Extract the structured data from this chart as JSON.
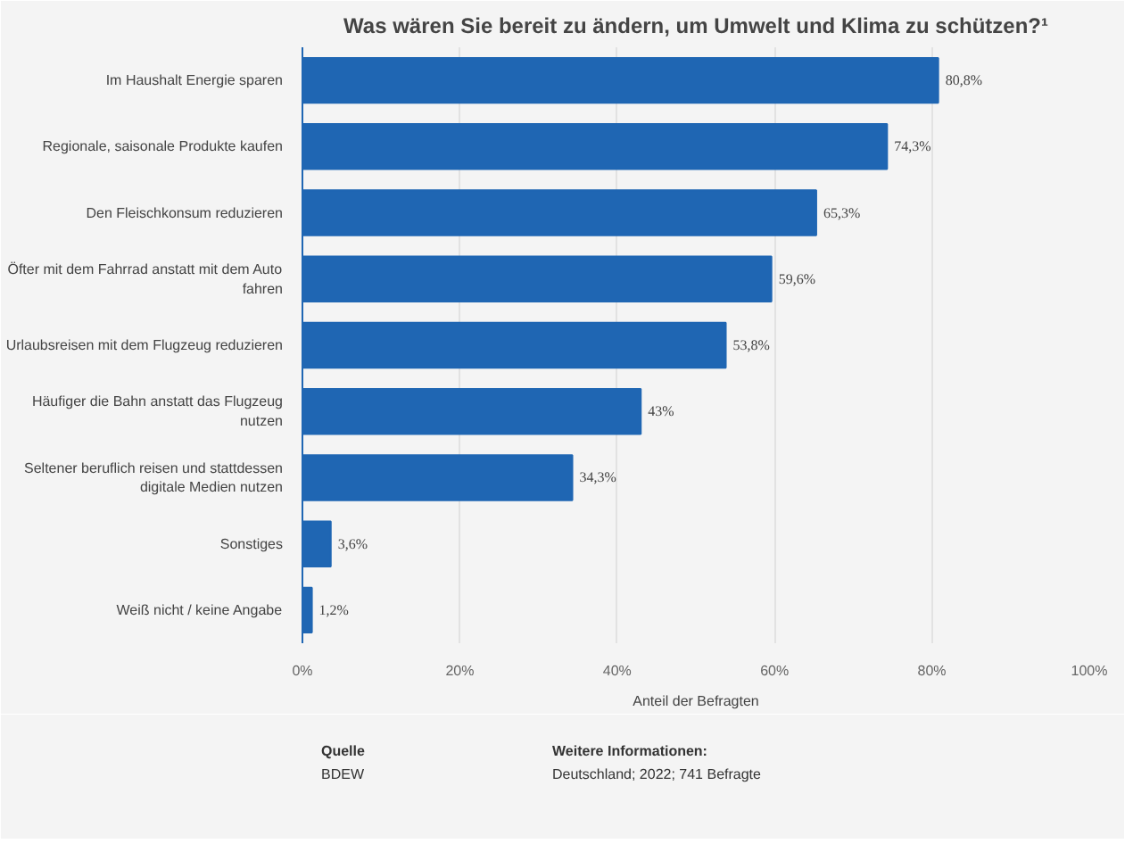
{
  "chart_data": {
    "type": "bar",
    "orientation": "horizontal",
    "title": "Was wären Sie bereit zu ändern, um Umwelt und Klima zu schützen?¹",
    "categories": [
      "Im Haushalt Energie sparen",
      "Regionale, saisonale Produkte kaufen",
      "Den Fleischkonsum reduzieren",
      "Öfter mit dem Fahrrad anstatt mit dem Auto fahren",
      "Urlaubsreisen mit dem Flugzeug reduzieren",
      "Häufiger die Bahn anstatt das Flugzeug nutzen",
      "Seltener beruflich reisen und stattdessen digitale Medien nutzen",
      "Sonstiges",
      "Weiß nicht / keine Angabe"
    ],
    "values": [
      80.8,
      74.3,
      65.3,
      59.6,
      53.8,
      43,
      34.3,
      3.6,
      1.2
    ],
    "value_labels": [
      "80,8%",
      "74,3%",
      "65,3%",
      "59,6%",
      "53,8%",
      "43%",
      "34,3%",
      "3,6%",
      "1,2%"
    ],
    "color": "#1f66b3",
    "xlim": [
      0,
      100
    ],
    "xticks": [
      {
        "value": 0,
        "label": "0%"
      },
      {
        "value": 20,
        "label": "20%"
      },
      {
        "value": 40,
        "label": "40%"
      },
      {
        "value": 60,
        "label": "60%"
      },
      {
        "value": 80,
        "label": "80%"
      },
      {
        "value": 100,
        "label": "100%"
      }
    ],
    "xlabel": "Anteil der Befragten",
    "grid": "x",
    "annotations": [
      "Quelle",
      "BDEW",
      "Weitere Informationen:",
      "Deutschland; 2022; 741 Befragte"
    ]
  }
}
